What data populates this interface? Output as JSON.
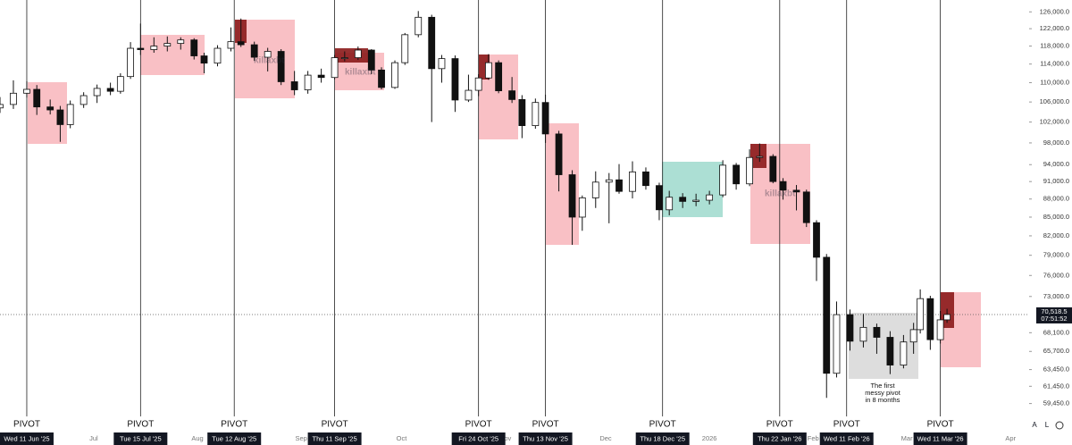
{
  "chart_data": {
    "type": "candlestick",
    "log_scale": true,
    "ylim": [
      58100,
      128900
    ],
    "xlim": [
      "2025-06-03",
      "2026-04-06"
    ],
    "yticks": [
      {
        "value": 126000,
        "label": "126,000.0"
      },
      {
        "value": 122000,
        "label": "122,000.0"
      },
      {
        "value": 118000,
        "label": "118,000.0"
      },
      {
        "value": 114000,
        "label": "114,000.0"
      },
      {
        "value": 110000,
        "label": "110,000.0"
      },
      {
        "value": 106000,
        "label": "106,000.0"
      },
      {
        "value": 102000,
        "label": "102,000.0"
      },
      {
        "value": 98000,
        "label": "98,000.0"
      },
      {
        "value": 94000,
        "label": "94,000.0"
      },
      {
        "value": 91000,
        "label": "91,000.0"
      },
      {
        "value": 88000,
        "label": "88,000.0"
      },
      {
        "value": 85000,
        "label": "85,000.0"
      },
      {
        "value": 82000,
        "label": "82,000.0"
      },
      {
        "value": 79000,
        "label": "79,000.0"
      },
      {
        "value": 76000,
        "label": "76,000.0"
      },
      {
        "value": 73000,
        "label": "73,000.0"
      },
      {
        "value": 68100,
        "label": "68,100.0"
      },
      {
        "value": 65700,
        "label": "65,700.0"
      },
      {
        "value": 63450,
        "label": "63,450.0"
      },
      {
        "value": 61450,
        "label": "61,450.0"
      },
      {
        "value": 59450,
        "label": "59,450.0"
      }
    ],
    "xticks": [
      {
        "value": "2025-07-01",
        "label": "Jul"
      },
      {
        "value": "2025-08-01",
        "label": "Aug"
      },
      {
        "value": "2025-09-01",
        "label": "Sep"
      },
      {
        "value": "2025-10-01",
        "label": "Oct"
      },
      {
        "value": "2025-11-01",
        "label": "Nov"
      },
      {
        "value": "2025-12-01",
        "label": "Dec"
      },
      {
        "value": "2026-01-01",
        "label": "2026"
      },
      {
        "value": "2026-02-01",
        "label": "Feb"
      },
      {
        "value": "2026-03-01",
        "label": "Mar"
      },
      {
        "value": "2026-04-01",
        "label": "Apr"
      }
    ],
    "pivot_label": "PIVOT",
    "pivots": [
      {
        "value": "2025-06-11",
        "label": "Wed 11 Jun '25"
      },
      {
        "value": "2025-07-15",
        "label": "Tue 15 Jul '25"
      },
      {
        "value": "2025-08-12",
        "label": "Tue 12 Aug '25"
      },
      {
        "value": "2025-09-11",
        "label": "Thu 11 Sep '25"
      },
      {
        "value": "2025-10-24",
        "label": "Fri 24 Oct '25"
      },
      {
        "value": "2025-11-13",
        "label": "Thu 13 Nov '25"
      },
      {
        "value": "2025-12-18",
        "label": "Thu 18 Dec '25"
      },
      {
        "value": "2026-01-22",
        "label": "Thu 22 Jan '26"
      },
      {
        "value": "2026-02-11",
        "label": "Wed 11 Feb '26"
      },
      {
        "value": "2026-03-11",
        "label": "Wed 11 Mar '26"
      }
    ],
    "last_price": {
      "value": 70518.5,
      "label": "70,518.5"
    },
    "countdown": "07:51:52",
    "watermark": "killaxbt",
    "annotation": [
      "The first",
      "messy pivot",
      "in 8 months"
    ],
    "buttons": [
      "A",
      "L"
    ],
    "x": [
      "2025-06-03",
      "2025-06-07",
      "2025-06-11",
      "2025-06-14",
      "2025-06-18",
      "2025-06-21",
      "2025-06-24",
      "2025-06-28",
      "2025-07-02",
      "2025-07-06",
      "2025-07-09",
      "2025-07-12",
      "2025-07-15",
      "2025-07-19",
      "2025-07-23",
      "2025-07-27",
      "2025-07-31",
      "2025-08-03",
      "2025-08-07",
      "2025-08-11",
      "2025-08-14",
      "2025-08-18",
      "2025-08-22",
      "2025-08-26",
      "2025-08-30",
      "2025-09-03",
      "2025-09-07",
      "2025-09-11",
      "2025-09-14",
      "2025-09-18",
      "2025-09-22",
      "2025-09-25",
      "2025-09-29",
      "2025-10-02",
      "2025-10-06",
      "2025-10-10",
      "2025-10-13",
      "2025-10-17",
      "2025-10-21",
      "2025-10-24",
      "2025-10-27",
      "2025-10-30",
      "2025-11-03",
      "2025-11-06",
      "2025-11-10",
      "2025-11-13",
      "2025-11-17",
      "2025-11-21",
      "2025-11-24",
      "2025-11-28",
      "2025-12-02",
      "2025-12-05",
      "2025-12-09",
      "2025-12-13",
      "2025-12-17",
      "2025-12-20",
      "2025-12-24",
      "2025-12-28",
      "2026-01-01",
      "2026-01-05",
      "2026-01-09",
      "2026-01-13",
      "2026-01-16",
      "2026-01-20",
      "2026-01-23",
      "2026-01-27",
      "2026-01-30",
      "2026-02-02",
      "2026-02-05",
      "2026-02-08",
      "2026-02-12",
      "2026-02-16",
      "2026-02-20",
      "2026-02-24",
      "2026-02-28",
      "2026-03-03",
      "2026-03-05",
      "2026-03-08",
      "2026-03-11",
      "2026-03-13"
    ],
    "open": [
      104800,
      105500,
      107800,
      108600,
      105000,
      104400,
      101500,
      105500,
      107300,
      108800,
      108200,
      111300,
      117500,
      117200,
      118000,
      118600,
      119400,
      115800,
      114200,
      117500,
      119000,
      118300,
      115500,
      116800,
      110200,
      108500,
      111600,
      111100,
      115400,
      115400,
      117100,
      112700,
      109000,
      114300,
      120600,
      124700,
      113000,
      115200,
      106400,
      108400,
      111000,
      114300,
      108300,
      106500,
      101300,
      105900,
      99700,
      92200,
      85000,
      88200,
      90900,
      91300,
      89300,
      92700,
      90300,
      86200,
      88300,
      87600,
      87800,
      88700,
      93900,
      90600,
      95300,
      95500,
      91000,
      89500,
      89200,
      84100,
      78700,
      63000,
      70500,
      67000,
      68800,
      67500,
      64000,
      66900,
      68500,
      72700,
      67200,
      69800
    ],
    "high": [
      107000,
      110500,
      110300,
      109500,
      106500,
      105200,
      106300,
      108000,
      109600,
      110000,
      112000,
      118900,
      123200,
      120000,
      120200,
      120000,
      119800,
      116500,
      118200,
      122300,
      124400,
      119000,
      117600,
      117300,
      112500,
      112500,
      113000,
      116000,
      116800,
      117900,
      117300,
      113300,
      114800,
      121000,
      126200,
      125300,
      116000,
      115900,
      111700,
      111800,
      116200,
      114800,
      111200,
      107400,
      106700,
      107500,
      100300,
      93000,
      88600,
      92800,
      92500,
      94100,
      94600,
      93500,
      90800,
      89400,
      89000,
      88900,
      89400,
      94800,
      94300,
      96800,
      97900,
      95900,
      91600,
      90400,
      89600,
      84500,
      79200,
      72300,
      71200,
      70600,
      69300,
      68300,
      67800,
      69400,
      74000,
      73100,
      71000,
      71300
    ],
    "low": [
      103800,
      104600,
      106900,
      103400,
      103500,
      98200,
      100800,
      104800,
      105800,
      107400,
      107700,
      110800,
      116000,
      116500,
      116800,
      117200,
      115000,
      112000,
      113500,
      116800,
      117800,
      114700,
      112400,
      109500,
      107400,
      107700,
      110000,
      110700,
      114600,
      114900,
      111800,
      108600,
      108700,
      113800,
      120000,
      102000,
      110000,
      104000,
      106000,
      107200,
      110600,
      107800,
      105800,
      98900,
      100700,
      98000,
      89300,
      80600,
      82800,
      86500,
      84000,
      88900,
      88100,
      89600,
      84500,
      85300,
      86500,
      86800,
      87100,
      88300,
      89600,
      90200,
      94500,
      90700,
      87900,
      86100,
      83400,
      75200,
      60100,
      62500,
      65800,
      66200,
      65400,
      62900,
      63600,
      65400,
      68000,
      65900,
      66700,
      69400
    ],
    "close": [
      105500,
      107800,
      108600,
      105000,
      104400,
      101500,
      105500,
      107300,
      108800,
      108200,
      111300,
      117500,
      117200,
      118000,
      118600,
      119400,
      115800,
      114200,
      117500,
      119000,
      118300,
      115500,
      116800,
      110200,
      108500,
      111600,
      111100,
      115400,
      115400,
      117100,
      112700,
      109000,
      114300,
      120600,
      124700,
      113000,
      115200,
      106400,
      108400,
      111000,
      114300,
      108300,
      106500,
      101300,
      105900,
      99700,
      92200,
      85000,
      88200,
      90900,
      91300,
      89300,
      92700,
      90300,
      86200,
      88300,
      87600,
      87800,
      88700,
      93900,
      90600,
      95300,
      95500,
      91000,
      89500,
      89200,
      84100,
      78700,
      63000,
      70500,
      67000,
      68800,
      67500,
      64000,
      66900,
      68500,
      72700,
      67200,
      69800,
      70518.5
    ]
  }
}
